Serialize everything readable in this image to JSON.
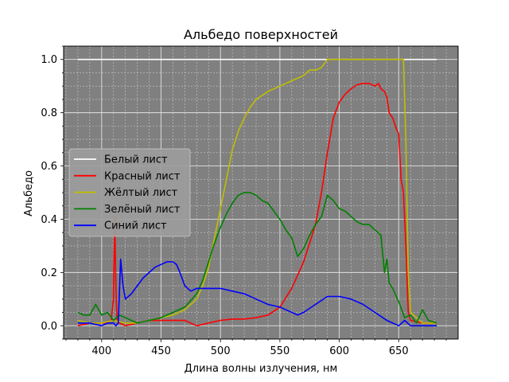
{
  "chart_data": {
    "type": "line",
    "title": "Альбедо поверхностей",
    "xlabel": "Длина волны излучения, нм",
    "ylabel": "Альбедо",
    "xlim": [
      368,
      700
    ],
    "ylim": [
      -0.05,
      1.05
    ],
    "xticks": [
      400,
      450,
      500,
      550,
      600,
      650
    ],
    "xtick_labels": [
      "400",
      "450",
      "500",
      "550",
      "600",
      "650"
    ],
    "yticks": [
      0.0,
      0.2,
      0.4,
      0.6,
      0.8,
      1.0
    ],
    "ytick_labels": [
      "0.0",
      "0.2",
      "0.4",
      "0.6",
      "0.8",
      "1.0"
    ],
    "grid": true,
    "minor_grid": true,
    "background": "#808080",
    "legend_position": "center-left",
    "series": [
      {
        "name": "Белый лист",
        "color": "#ffffff",
        "x": [
          380,
          682
        ],
        "y": [
          1.0,
          1.0
        ]
      },
      {
        "name": "Красный лист",
        "color": "#ff0000",
        "x": [
          380,
          390,
          400,
          405,
          408,
          410,
          411,
          412,
          413,
          415,
          420,
          430,
          440,
          450,
          460,
          470,
          480,
          490,
          500,
          510,
          520,
          530,
          540,
          550,
          560,
          570,
          580,
          585,
          590,
          595,
          600,
          605,
          610,
          615,
          620,
          625,
          630,
          633,
          635,
          638,
          640,
          642,
          645,
          648,
          650,
          652,
          654,
          656,
          658,
          660,
          670,
          682
        ],
        "y": [
          0.0,
          0.01,
          0.01,
          0.01,
          0.02,
          0.1,
          0.41,
          0.15,
          0.02,
          0.01,
          0.0,
          0.01,
          0.02,
          0.02,
          0.02,
          0.02,
          0.0,
          0.01,
          0.02,
          0.025,
          0.025,
          0.03,
          0.04,
          0.07,
          0.14,
          0.24,
          0.38,
          0.5,
          0.65,
          0.78,
          0.84,
          0.87,
          0.89,
          0.905,
          0.91,
          0.91,
          0.9,
          0.91,
          0.89,
          0.88,
          0.86,
          0.8,
          0.78,
          0.74,
          0.72,
          0.55,
          0.5,
          0.3,
          0.05,
          0.02,
          0.01,
          0.01
        ]
      },
      {
        "name": "Жёлтый лист",
        "color": "#bfbf00",
        "x": [
          380,
          390,
          400,
          410,
          420,
          430,
          440,
          450,
          460,
          470,
          480,
          485,
          490,
          495,
          500,
          505,
          510,
          515,
          520,
          525,
          530,
          540,
          550,
          560,
          570,
          575,
          580,
          585,
          590,
          600,
          610,
          620,
          630,
          640,
          650,
          654,
          656,
          658,
          660,
          670,
          682
        ],
        "y": [
          0.02,
          0.01,
          0.01,
          0.02,
          0.01,
          0.01,
          0.02,
          0.03,
          0.04,
          0.06,
          0.1,
          0.15,
          0.22,
          0.33,
          0.44,
          0.55,
          0.66,
          0.73,
          0.78,
          0.82,
          0.85,
          0.88,
          0.9,
          0.92,
          0.94,
          0.96,
          0.96,
          0.97,
          1.0,
          1.0,
          1.0,
          1.0,
          1.0,
          1.0,
          1.0,
          1.0,
          0.7,
          0.2,
          0.05,
          0.01,
          0.01
        ]
      },
      {
        "name": "Зелёный лист",
        "color": "#008000",
        "x": [
          380,
          385,
          390,
          395,
          400,
          405,
          410,
          415,
          420,
          425,
          430,
          440,
          450,
          460,
          470,
          480,
          485,
          490,
          495,
          500,
          505,
          510,
          515,
          520,
          525,
          530,
          535,
          540,
          545,
          550,
          555,
          560,
          565,
          570,
          575,
          580,
          585,
          590,
          595,
          600,
          605,
          610,
          615,
          620,
          625,
          630,
          635,
          638,
          640,
          642,
          645,
          650,
          655,
          660,
          665,
          670,
          675,
          682
        ],
        "y": [
          0.05,
          0.04,
          0.04,
          0.08,
          0.04,
          0.05,
          0.02,
          0.04,
          0.03,
          0.02,
          0.01,
          0.02,
          0.03,
          0.05,
          0.07,
          0.12,
          0.17,
          0.24,
          0.31,
          0.37,
          0.42,
          0.46,
          0.49,
          0.5,
          0.5,
          0.49,
          0.47,
          0.46,
          0.43,
          0.4,
          0.36,
          0.33,
          0.26,
          0.29,
          0.34,
          0.38,
          0.41,
          0.49,
          0.47,
          0.44,
          0.43,
          0.41,
          0.39,
          0.38,
          0.38,
          0.36,
          0.34,
          0.2,
          0.25,
          0.16,
          0.14,
          0.09,
          0.03,
          0.04,
          0.01,
          0.06,
          0.02,
          0.01
        ]
      },
      {
        "name": "Синий лист",
        "color": "#0000ff",
        "x": [
          380,
          390,
          400,
          405,
          410,
          412,
          414,
          416,
          418,
          420,
          425,
          430,
          435,
          440,
          445,
          450,
          455,
          460,
          463,
          465,
          470,
          475,
          480,
          490,
          500,
          510,
          520,
          530,
          540,
          550,
          555,
          560,
          565,
          570,
          580,
          590,
          600,
          610,
          620,
          630,
          640,
          645,
          650,
          655,
          660,
          670,
          682
        ],
        "y": [
          0.01,
          0.01,
          0.0,
          0.01,
          0.01,
          0.0,
          0.01,
          0.25,
          0.15,
          0.1,
          0.12,
          0.15,
          0.18,
          0.2,
          0.22,
          0.23,
          0.24,
          0.24,
          0.23,
          0.21,
          0.15,
          0.13,
          0.14,
          0.14,
          0.14,
          0.13,
          0.12,
          0.1,
          0.08,
          0.07,
          0.06,
          0.05,
          0.04,
          0.05,
          0.08,
          0.11,
          0.11,
          0.1,
          0.08,
          0.05,
          0.02,
          0.01,
          0.0,
          0.02,
          0.0,
          0.0,
          0.0
        ]
      }
    ]
  }
}
